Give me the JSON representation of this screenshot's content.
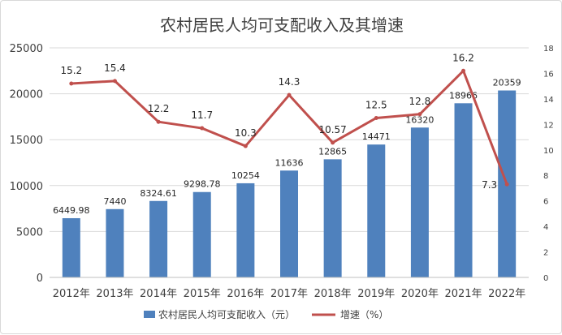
{
  "colors": {
    "bar": "#4F81BD",
    "line": "#C0504D",
    "grid": "#d9d9d9",
    "axis": "#404040"
  },
  "chart_data": {
    "type": "bar",
    "title": "农村居民人均可支配收入及其增速",
    "categories": [
      "2012年",
      "2013年",
      "2014年",
      "2015年",
      "2016年",
      "2017年",
      "2018年",
      "2019年",
      "2020年",
      "2021年",
      "2022年"
    ],
    "series": [
      {
        "name": "农村居民人均可支配收入（元）",
        "type": "bar",
        "axis": "left",
        "values": [
          6449.98,
          7440,
          8324.61,
          9298.78,
          10254,
          11636,
          12865,
          14471,
          16320,
          18966,
          20359
        ],
        "labels": [
          "6449.98",
          "7440",
          "8324.61",
          "9298.78",
          "10254",
          "11636",
          "12865",
          "14471",
          "16320",
          "18966",
          "20359"
        ]
      },
      {
        "name": "增速（%）",
        "type": "line",
        "axis": "right",
        "values": [
          15.2,
          15.4,
          12.2,
          11.7,
          10.3,
          14.3,
          10.57,
          12.5,
          12.8,
          16.2,
          7.3
        ],
        "labels": [
          "15.2",
          "15.4",
          "12.2",
          "11.7",
          "10.3",
          "14.3",
          "10.57",
          "12.5",
          "12.8",
          "16.2",
          "7.3"
        ]
      }
    ],
    "y_left": {
      "min": 0,
      "max": 25000,
      "step": 5000,
      "ticks": [
        "0",
        "5000",
        "10000",
        "15000",
        "20000",
        "25000"
      ]
    },
    "y_right": {
      "min": 0,
      "max": 18,
      "step": 2,
      "ticks": [
        "0",
        "2",
        "4",
        "6",
        "8",
        "10",
        "12",
        "14",
        "16",
        "18"
      ]
    },
    "grid": true,
    "legend_position": "bottom"
  }
}
